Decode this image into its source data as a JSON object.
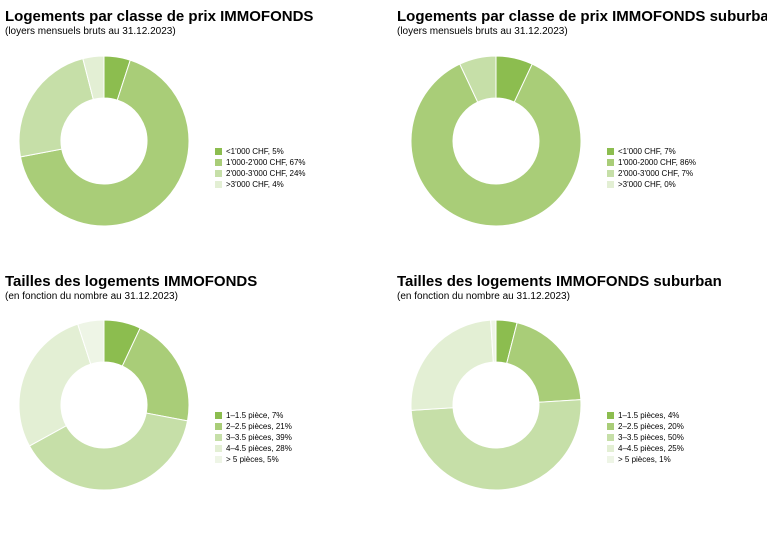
{
  "palette": [
    "#8cbd4f",
    "#a9cd78",
    "#c6dfa8",
    "#e3efd4",
    "#eef5e6"
  ],
  "chart_data": [
    {
      "type": "pie",
      "title": "Logements par classe de prix IMMOFONDS",
      "subtitle": "(loyers mensuels bruts au 31.12.2023)",
      "categories": [
        "<1'000 CHF, 5%",
        "1'000-2'000 CHF, 67%",
        "2'000-3'000 CHF, 24%",
        ">3'000 CHF, 4%"
      ],
      "values": [
        5,
        67,
        24,
        4
      ]
    },
    {
      "type": "pie",
      "title": "Logements par classe de prix IMMOFONDS suburban",
      "subtitle": "(loyers mensuels bruts au 31.12.2023)",
      "categories": [
        "<1'000 CHF, 7%",
        "1'000-2000 CHF, 86%",
        "2'000-3'000 CHF, 7%",
        ">3'000 CHF, 0%"
      ],
      "values": [
        7,
        86,
        7,
        0
      ]
    },
    {
      "type": "pie",
      "title": "Tailles des logements IMMOFONDS",
      "subtitle": "(en fonction du nombre au 31.12.2023)",
      "categories": [
        "1–1.5 pièce, 7%",
        "2–2.5 pièces, 21%",
        "3–3.5 pièces, 39%",
        "4–4.5 pièces, 28%",
        "> 5 pièces, 5%"
      ],
      "values": [
        7,
        21,
        39,
        28,
        5
      ]
    },
    {
      "type": "pie",
      "title": "Tailles des logements IMMOFONDS suburban",
      "subtitle": "(en fonction du nombre au 31.12.2023)",
      "categories": [
        "1–1.5 pièces, 4%",
        "2–2.5 pièces, 20%",
        "3–3.5 pièces, 50%",
        "4–4.5 pièces, 25%",
        "> 5 pièces, 1%"
      ],
      "values": [
        4,
        20,
        50,
        25,
        1
      ]
    }
  ]
}
